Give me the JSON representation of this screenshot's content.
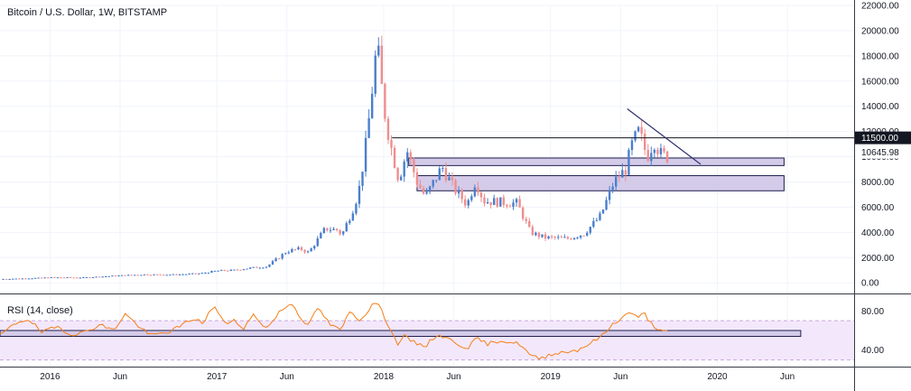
{
  "chart_data": {
    "type": "candlestick",
    "title": "Bitcoin / U.S. Dollar, 1W, BITSTAMP",
    "price_axis": {
      "ylim": [
        -700,
        22000
      ],
      "ticks": [
        "0.00",
        "2000.00",
        "4000.00",
        "6000.00",
        "8000.00",
        "10000.00",
        "12000.00",
        "14000.00",
        "16000.00",
        "18000.00",
        "20000.00",
        "22000.00"
      ],
      "tick_values": [
        0,
        2000,
        4000,
        6000,
        8000,
        10000,
        12000,
        14000,
        16000,
        18000,
        20000,
        22000
      ]
    },
    "time_axis": {
      "ticks": [
        {
          "label": "2016",
          "t": 2016.0
        },
        {
          "label": "Jun",
          "t": 2016.42
        },
        {
          "label": "2017",
          "t": 2017.0
        },
        {
          "label": "Jun",
          "t": 2017.42
        },
        {
          "label": "2018",
          "t": 2018.0
        },
        {
          "label": "Jun",
          "t": 2018.42
        },
        {
          "label": "2019",
          "t": 2019.0
        },
        {
          "label": "Jun",
          "t": 2019.42
        },
        {
          "label": "2020",
          "t": 2020.0
        },
        {
          "label": "Jun",
          "t": 2020.42
        }
      ],
      "range": [
        2015.7,
        2020.82
      ]
    },
    "price_key_points": [
      [
        2015.7,
        300
      ],
      [
        2015.9,
        370
      ],
      [
        2016.0,
        430
      ],
      [
        2016.2,
        420
      ],
      [
        2016.42,
        580
      ],
      [
        2016.55,
        660
      ],
      [
        2016.75,
        650
      ],
      [
        2016.9,
        740
      ],
      [
        2017.0,
        960
      ],
      [
        2017.1,
        1000
      ],
      [
        2017.2,
        1180
      ],
      [
        2017.3,
        1300
      ],
      [
        2017.42,
        2500
      ],
      [
        2017.5,
        2700
      ],
      [
        2017.55,
        2400
      ],
      [
        2017.65,
        4300
      ],
      [
        2017.72,
        4200
      ],
      [
        2017.75,
        3800
      ],
      [
        2017.82,
        6000
      ],
      [
        2017.85,
        7200
      ],
      [
        2017.9,
        11500
      ],
      [
        2017.96,
        19000
      ],
      [
        2018.0,
        14000
      ],
      [
        2018.04,
        11000
      ],
      [
        2018.09,
        8200
      ],
      [
        2018.14,
        10500
      ],
      [
        2018.2,
        8000
      ],
      [
        2018.25,
        6800
      ],
      [
        2018.35,
        9200
      ],
      [
        2018.42,
        7500
      ],
      [
        2018.5,
        6200
      ],
      [
        2018.55,
        8100
      ],
      [
        2018.6,
        6500
      ],
      [
        2018.7,
        6400
      ],
      [
        2018.8,
        6300
      ],
      [
        2018.88,
        4000
      ],
      [
        2018.96,
        3600
      ],
      [
        2019.1,
        3500
      ],
      [
        2019.2,
        3900
      ],
      [
        2019.3,
        5300
      ],
      [
        2019.38,
        8000
      ],
      [
        2019.45,
        9000
      ],
      [
        2019.49,
        11000
      ],
      [
        2019.53,
        12000
      ],
      [
        2019.58,
        10000
      ],
      [
        2019.62,
        11300
      ],
      [
        2019.66,
        10200
      ],
      [
        2019.7,
        10000
      ]
    ],
    "price_line": {
      "label": "11500.00",
      "value": 11500
    },
    "last_price": {
      "label": "10645.98",
      "value": 10645.98
    },
    "zones": [
      {
        "from_t": 2018.15,
        "to_t": 2020.4,
        "y_low": 9300,
        "y_high": 9900
      },
      {
        "from_t": 2018.2,
        "to_t": 2020.4,
        "y_low": 7300,
        "y_high": 8500
      }
    ],
    "trendline": {
      "points": [
        [
          2019.46,
          13800
        ],
        [
          2019.9,
          9400
        ]
      ]
    },
    "rsi": {
      "label": "RSI (14, close)",
      "ylim": [
        25,
        95
      ],
      "ticks": [
        "40.00",
        "80.00"
      ],
      "tick_values": [
        40,
        80
      ],
      "band": [
        30,
        70
      ],
      "zone": {
        "from_t": 2015.7,
        "to_t": 2020.5,
        "y_low": 54,
        "y_high": 60
      },
      "key_points": [
        [
          2015.7,
          55
        ],
        [
          2015.8,
          68
        ],
        [
          2015.87,
          72
        ],
        [
          2015.95,
          58
        ],
        [
          2016.05,
          64
        ],
        [
          2016.12,
          56
        ],
        [
          2016.2,
          58
        ],
        [
          2016.3,
          66
        ],
        [
          2016.38,
          60
        ],
        [
          2016.45,
          77
        ],
        [
          2016.52,
          66
        ],
        [
          2016.6,
          55
        ],
        [
          2016.7,
          58
        ],
        [
          2016.78,
          64
        ],
        [
          2016.85,
          72
        ],
        [
          2016.92,
          68
        ],
        [
          2016.98,
          86
        ],
        [
          2017.05,
          66
        ],
        [
          2017.1,
          72
        ],
        [
          2017.15,
          60
        ],
        [
          2017.22,
          76
        ],
        [
          2017.3,
          62
        ],
        [
          2017.38,
          80
        ],
        [
          2017.45,
          88
        ],
        [
          2017.5,
          74
        ],
        [
          2017.55,
          64
        ],
        [
          2017.6,
          84
        ],
        [
          2017.68,
          66
        ],
        [
          2017.74,
          60
        ],
        [
          2017.8,
          80
        ],
        [
          2017.86,
          70
        ],
        [
          2017.92,
          84
        ],
        [
          2017.96,
          90
        ],
        [
          2018.0,
          75
        ],
        [
          2018.04,
          62
        ],
        [
          2018.08,
          46
        ],
        [
          2018.12,
          54
        ],
        [
          2018.18,
          48
        ],
        [
          2018.25,
          44
        ],
        [
          2018.32,
          56
        ],
        [
          2018.38,
          52
        ],
        [
          2018.45,
          46
        ],
        [
          2018.5,
          42
        ],
        [
          2018.56,
          52
        ],
        [
          2018.62,
          46
        ],
        [
          2018.7,
          50
        ],
        [
          2018.76,
          48
        ],
        [
          2018.82,
          46
        ],
        [
          2018.88,
          34
        ],
        [
          2018.94,
          31
        ],
        [
          2019.0,
          36
        ],
        [
          2019.08,
          38
        ],
        [
          2019.16,
          40
        ],
        [
          2019.25,
          48
        ],
        [
          2019.32,
          56
        ],
        [
          2019.38,
          68
        ],
        [
          2019.44,
          74
        ],
        [
          2019.48,
          80
        ],
        [
          2019.52,
          72
        ],
        [
          2019.56,
          78
        ],
        [
          2019.6,
          68
        ],
        [
          2019.64,
          62
        ],
        [
          2019.68,
          58
        ],
        [
          2019.7,
          60
        ]
      ]
    },
    "colors": {
      "up": "#4a7fcc",
      "down": "#ef8e8e",
      "zone_fill": "#d4cbe9",
      "zone_stroke": "#1f1f4d",
      "rsi_line": "#f57f17",
      "rsi_band_fill": "#f3e8fb",
      "rsi_band_stroke": "#c9a6de",
      "grid": "#f0f3fa",
      "axis": "#363a45",
      "label_bg": "#131722",
      "label_text": "#ffffff"
    }
  }
}
